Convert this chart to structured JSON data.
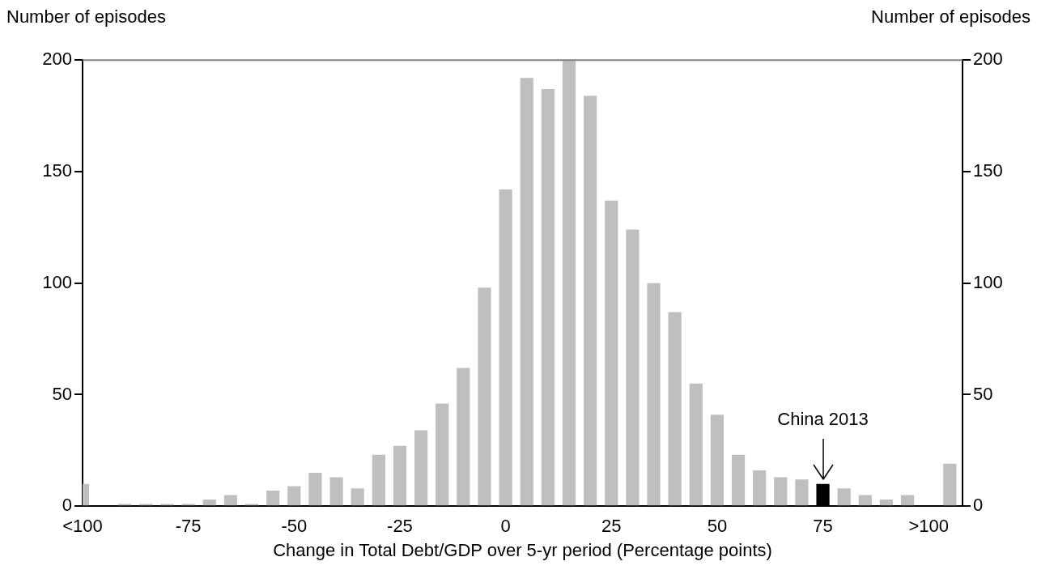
{
  "chart_data": {
    "type": "bar",
    "xlabel": "Change in Total Debt/GDP over 5-yr period (Percentage points)",
    "ylabel": "Number of episodes",
    "y2label": "Number of episodes",
    "x": [
      -100,
      -95,
      -90,
      -85,
      -80,
      -75,
      -70,
      -65,
      -60,
      -55,
      -50,
      -45,
      -40,
      -35,
      -30,
      -25,
      -20,
      -15,
      -10,
      -5,
      0,
      5,
      10,
      15,
      20,
      25,
      30,
      35,
      40,
      45,
      50,
      55,
      60,
      65,
      70,
      75,
      80,
      85,
      90,
      95,
      100,
      105
    ],
    "values": [
      10,
      0,
      1,
      1,
      1,
      1,
      3,
      5,
      1,
      7,
      9,
      15,
      13,
      8,
      23,
      27,
      34,
      46,
      62,
      98,
      142,
      192,
      187,
      200,
      184,
      137,
      124,
      100,
      87,
      55,
      41,
      23,
      16,
      13,
      12,
      10,
      8,
      5,
      3,
      5,
      0,
      19
    ],
    "colors": [
      "#bfbfbf",
      "#bfbfbf",
      "#bfbfbf",
      "#bfbfbf",
      "#bfbfbf",
      "#bfbfbf",
      "#bfbfbf",
      "#bfbfbf",
      "#bfbfbf",
      "#bfbfbf",
      "#bfbfbf",
      "#bfbfbf",
      "#bfbfbf",
      "#bfbfbf",
      "#bfbfbf",
      "#bfbfbf",
      "#bfbfbf",
      "#bfbfbf",
      "#bfbfbf",
      "#bfbfbf",
      "#bfbfbf",
      "#bfbfbf",
      "#bfbfbf",
      "#bfbfbf",
      "#bfbfbf",
      "#bfbfbf",
      "#bfbfbf",
      "#bfbfbf",
      "#bfbfbf",
      "#bfbfbf",
      "#bfbfbf",
      "#bfbfbf",
      "#bfbfbf",
      "#bfbfbf",
      "#bfbfbf",
      "#000000",
      "#bfbfbf",
      "#bfbfbf",
      "#bfbfbf",
      "#bfbfbf",
      "#bfbfbf",
      "#bfbfbf"
    ],
    "xlim": [
      -100,
      108
    ],
    "xticks": [
      {
        "value": -100,
        "label": "<100"
      },
      -75,
      -50,
      -25,
      0,
      25,
      50,
      75,
      {
        "value": 100,
        "label": ">100"
      }
    ],
    "ylim": [
      0,
      200
    ],
    "yticks": [
      0,
      50,
      100,
      150,
      200
    ],
    "y2lim": [
      0,
      200
    ],
    "y2ticks": [
      0,
      50,
      100,
      150,
      200
    ],
    "annotations": [
      {
        "text": "China 2013",
        "x": 75,
        "y": 10
      }
    ],
    "grid": false,
    "legend": false
  }
}
